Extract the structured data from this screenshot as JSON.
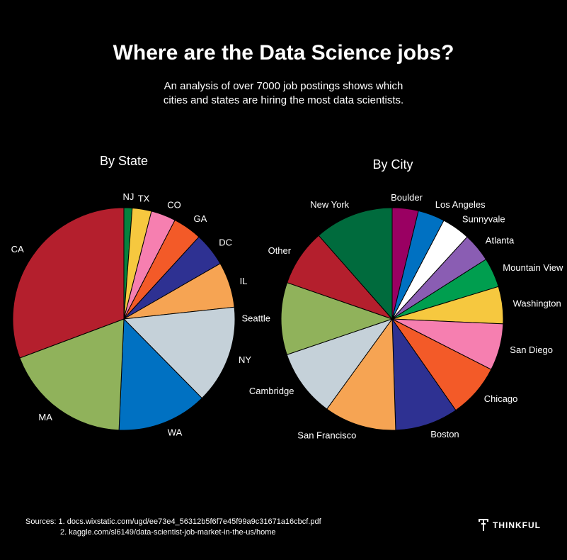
{
  "title": "Where are the Data Science jobs?",
  "subtitle": [
    "An analysis of over 7000 job postings shows which",
    "cities and states are hiring the most data scientists."
  ],
  "chart_data": [
    {
      "type": "pie",
      "title": "By State",
      "start": "top",
      "direction": "clockwise",
      "slices": [
        {
          "label": "NJ",
          "value": 1.2,
          "color": "#06823f"
        },
        {
          "label": "TX",
          "value": 2.8,
          "color": "#f6c83f"
        },
        {
          "label": "CO",
          "value": 3.6,
          "color": "#f67fb0"
        },
        {
          "label": "GA",
          "value": 4.2,
          "color": "#f35a28"
        },
        {
          "label": "DC",
          "value": 4.9,
          "color": "#2e3192"
        },
        {
          "label": "IL",
          "value": 6.6,
          "color": "#f6a453"
        },
        {
          "label": "NY",
          "value": 14.3,
          "color": "#c5d1d9"
        },
        {
          "label": "WA",
          "value": 13.1,
          "color": "#0071c2"
        },
        {
          "label": "MA",
          "value": 18.6,
          "color": "#90b25b"
        },
        {
          "label": "CA",
          "value": 30.7,
          "color": "#b41f2d"
        }
      ]
    },
    {
      "type": "pie",
      "title": "By City",
      "start": "top",
      "direction": "clockwise",
      "slices": [
        {
          "label": "Boulder",
          "value": 3.8,
          "color": "#9a0062"
        },
        {
          "label": "Los Angeles",
          "value": 3.9,
          "color": "#0071c2"
        },
        {
          "label": "Sunnyvale",
          "value": 4.1,
          "color": "#ffffff"
        },
        {
          "label": "Atlanta",
          "value": 4.2,
          "color": "#8a5db3"
        },
        {
          "label": "Mountain View",
          "value": 4.3,
          "color": "#009e4f"
        },
        {
          "label": "Washington",
          "value": 5.4,
          "color": "#f6c83f"
        },
        {
          "label": "San Diego",
          "value": 6.8,
          "color": "#f67fb0"
        },
        {
          "label": "Chicago",
          "value": 7.8,
          "color": "#f35a28"
        },
        {
          "label": "Boston",
          "value": 9.2,
          "color": "#2e3192"
        },
        {
          "label": "San Francisco",
          "value": 10.5,
          "color": "#f6a453"
        },
        {
          "label": "Cambridge",
          "value": 9.8,
          "color": "#c5d1d9"
        },
        {
          "label": "Seattle",
          "value": 10.5,
          "color": "#90b25b"
        },
        {
          "label": "Other",
          "value": 8.2,
          "color": "#b41f2d"
        },
        {
          "label": "New York",
          "value": 11.5,
          "color": "#006b3d"
        }
      ]
    }
  ],
  "sources": {
    "line1": "Sources: 1. docs.wixstatic.com/ugd/ee73e4_56312b5f6f7e45f99a9c31671a16cbcf.pdf",
    "line2": "2. kaggle.com/sl6149/data-scientist-job-market-in-the-us/home"
  },
  "brand": {
    "name": "THINKFUL",
    "icon": "thinkful-logo-icon"
  }
}
